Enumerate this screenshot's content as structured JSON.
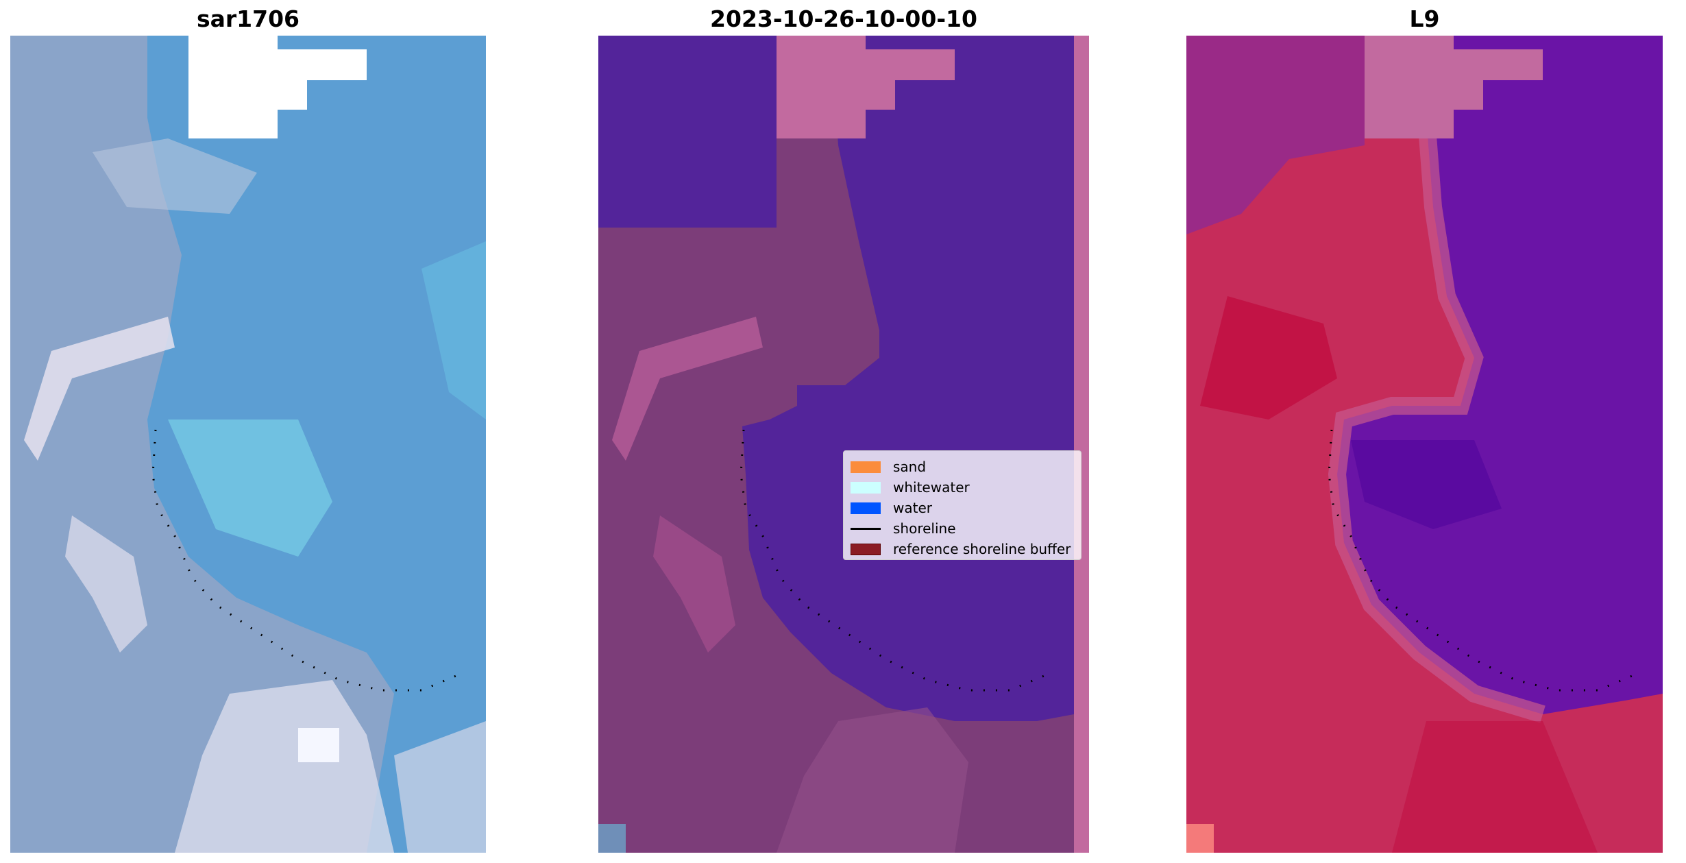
{
  "panels": [
    {
      "title": "sar1706"
    },
    {
      "title": "2023-10-26-10-00-10"
    },
    {
      "title": "L9"
    }
  ],
  "legend": {
    "items": [
      {
        "label": "sand",
        "color": "#fb8c3c",
        "kind": "patch"
      },
      {
        "label": "whitewater",
        "color": "#ccffff",
        "kind": "patch"
      },
      {
        "label": "water",
        "color": "#0055ff",
        "kind": "patch"
      },
      {
        "label": "shoreline",
        "color": "#000000",
        "kind": "line"
      },
      {
        "label": "reference shoreline buffer",
        "color": "#8b1c24",
        "kind": "patch",
        "edge": "#5a0000"
      }
    ]
  },
  "colors": {
    "rgb_land": "#8fa6c6",
    "rgb_water": "#5c9fd4",
    "rgb_light": "#dde4ef",
    "classified_water": "#53249a",
    "classified_land": "#7c3d79",
    "classified_edge_pink": "#c26a9f",
    "index_land": "#c62c5a",
    "index_water": "#6a14a6",
    "nodata": "#ffffff",
    "shoreline": "#000000"
  }
}
